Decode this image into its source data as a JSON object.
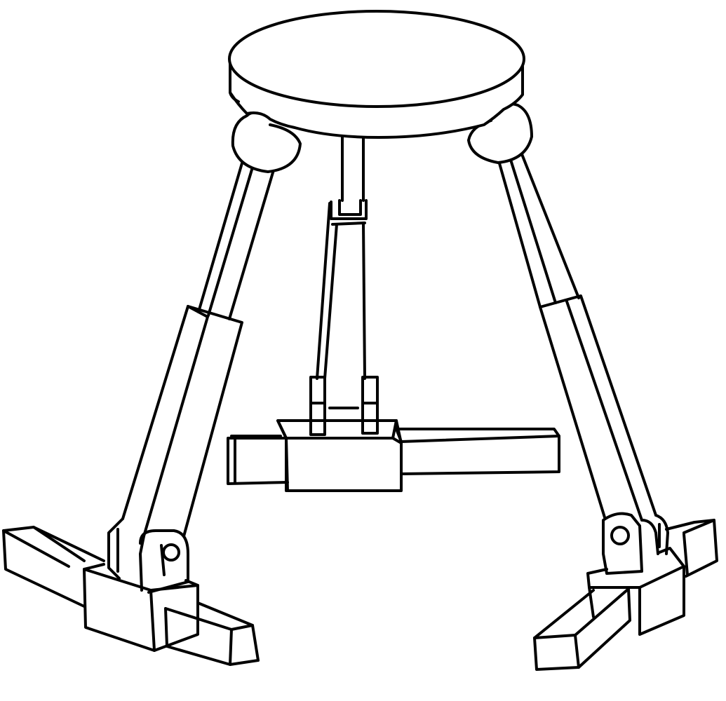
{
  "drawing": {
    "subject": "delta-robot-sketch",
    "style": "black line art on white",
    "colors": {
      "stroke": "#000000",
      "background": "#ffffff"
    },
    "parts": [
      "top-platform",
      "ball-joint-left",
      "ball-joint-right",
      "left-leg-upper-rod",
      "left-leg-lower-sleeve",
      "left-foot-clevis",
      "left-foot-block",
      "left-foot-rail",
      "right-leg-upper-rod",
      "right-leg-lower-sleeve",
      "right-foot-clevis",
      "right-foot-block",
      "right-foot-rail",
      "center-shaft",
      "center-slider",
      "center-carriage",
      "center-rail"
    ]
  }
}
